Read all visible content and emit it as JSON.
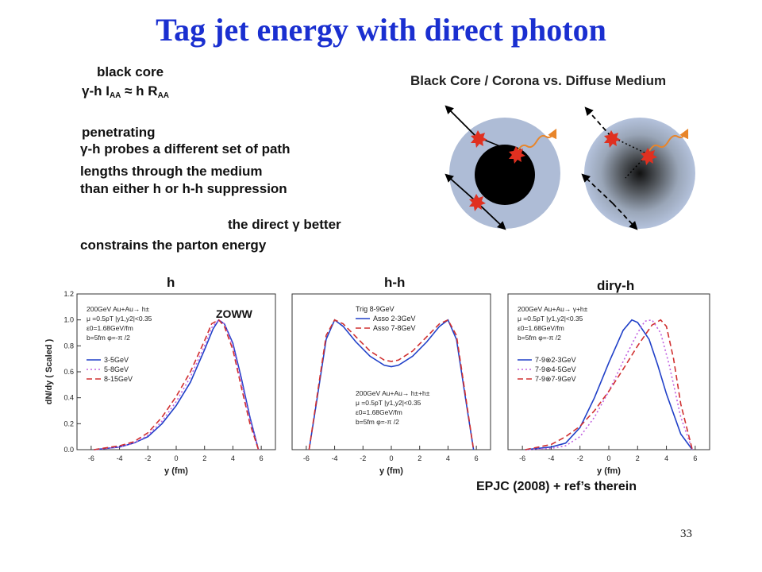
{
  "slide": {
    "title": "Tag jet energy with direct photon",
    "page_number": "33",
    "reference": "EPJC (2008) + ref’s therein",
    "diagram_title": "Black Core / Corona vs. Diffuse Medium",
    "text_blocks": {
      "black_core": "black core",
      "iaa_prefix": "γ-h I",
      "iaa_sub": "AA",
      "raa_prefix": " ≈ h R",
      "raa_sub": "AA",
      "penetrating": "penetrating",
      "pen_line1": "γ-h probes a different set of path",
      "pen_line2": "lengths through the medium",
      "pen_line3": "than either h or h-h suppression",
      "direct_line1": "the direct γ better",
      "direct_line2": "constrains the parton energy"
    },
    "colors": {
      "title": "#1a2fd0",
      "medium": "#aebcd6",
      "core": "#000000",
      "photon": "#e8852a",
      "star": "#e03020"
    }
  },
  "chart_data": [
    {
      "type": "line",
      "panel_label": "h",
      "badge": "ZOWW",
      "ylabel": "dN/dy ( Scaled )",
      "xlabel": "y (fm)",
      "xlim": [
        -7,
        7
      ],
      "ylim": [
        0,
        1.2
      ],
      "x_ticks": [
        "-6",
        "-4",
        "-2",
        "0",
        "2",
        "4",
        "6"
      ],
      "y_ticks": [
        "0.0",
        "0.2",
        "0.4",
        "0.6",
        "0.8",
        "1.0",
        "1.2"
      ],
      "annotation": [
        "200GeV  Au+Au→ h±",
        "μ =0.5pT  |y1,y2|<0.35",
        "ε0=1.68GeV/fm",
        "b=5fm  φ=-π /2"
      ],
      "series": [
        {
          "name": "3-5GeV",
          "color": "#2040c8",
          "dash": "solid",
          "x": [
            -5.8,
            -4,
            -3,
            -2,
            -1,
            0,
            1,
            2,
            2.6,
            3,
            3.4,
            4,
            4.6,
            5.2,
            5.8
          ],
          "y": [
            0,
            0.02,
            0.05,
            0.1,
            0.2,
            0.34,
            0.52,
            0.77,
            0.93,
            1.0,
            0.97,
            0.82,
            0.55,
            0.25,
            0
          ]
        },
        {
          "name": "5-8GeV",
          "color": "#c060e0",
          "dash": "dot",
          "x": [
            -5.8,
            -4,
            -3,
            -2,
            -1,
            0,
            1,
            2,
            2.5,
            3,
            3.4,
            4,
            4.6,
            5.2,
            5.8
          ],
          "y": [
            0,
            0.02,
            0.05,
            0.11,
            0.22,
            0.37,
            0.56,
            0.8,
            0.94,
            1.0,
            0.97,
            0.8,
            0.52,
            0.23,
            0
          ]
        },
        {
          "name": "8-15GeV",
          "color": "#d03030",
          "dash": "dash",
          "x": [
            -5.8,
            -4,
            -3,
            -2,
            -1,
            0,
            1,
            2,
            2.5,
            3,
            3.4,
            4,
            4.6,
            5.2,
            5.8
          ],
          "y": [
            0,
            0.03,
            0.06,
            0.13,
            0.25,
            0.41,
            0.6,
            0.84,
            0.97,
            1.0,
            0.95,
            0.77,
            0.48,
            0.2,
            0
          ]
        }
      ]
    },
    {
      "type": "line",
      "panel_label": "h-h",
      "xlabel": "y (fm)",
      "xlim": [
        -7,
        7
      ],
      "ylim": [
        0,
        1.2
      ],
      "x_ticks": [
        "-6",
        "-4",
        "-2",
        "0",
        "2",
        "4",
        "6"
      ],
      "legend_title": "Trig 8-9GeV",
      "annotation": [
        "200GeV  Au+Au→ h±+h±",
        "μ =0.5pT  |y1,y2|<0.35",
        "ε0=1.68GeV/fm",
        "b=5fm  φ=-π /2"
      ],
      "series": [
        {
          "name": "Asso 2-3GeV",
          "color": "#2040c8",
          "dash": "solid",
          "x": [
            -5.8,
            -5.3,
            -4.6,
            -4,
            -3.4,
            -2.5,
            -1.5,
            -0.5,
            0,
            0.5,
            1.5,
            2.5,
            3.4,
            4,
            4.6,
            5.3,
            5.8
          ],
          "y": [
            0,
            0.35,
            0.85,
            1.0,
            0.95,
            0.83,
            0.72,
            0.65,
            0.64,
            0.65,
            0.72,
            0.83,
            0.95,
            1.0,
            0.85,
            0.35,
            0
          ]
        },
        {
          "name": "Asso 7-8GeV",
          "color": "#d03030",
          "dash": "dash",
          "x": [
            -5.8,
            -5.3,
            -4.6,
            -4,
            -3.4,
            -2.5,
            -1.5,
            -0.5,
            0,
            0.5,
            1.5,
            2.5,
            3.4,
            4,
            4.6,
            5.3,
            5.8
          ],
          "y": [
            0,
            0.37,
            0.88,
            1.0,
            0.97,
            0.87,
            0.76,
            0.69,
            0.68,
            0.69,
            0.76,
            0.87,
            0.97,
            1.0,
            0.88,
            0.37,
            0
          ]
        }
      ]
    },
    {
      "type": "line",
      "panel_label": "dirγ-h",
      "xlabel": "y (fm)",
      "xlim": [
        -7,
        7
      ],
      "ylim": [
        0,
        1.2
      ],
      "x_ticks": [
        "-6",
        "-4",
        "-2",
        "0",
        "2",
        "4",
        "6"
      ],
      "annotation": [
        "200GeV  Au+Au→ γ+h±",
        "μ =0.5pT  |y1,y2|<0.35",
        "ε0=1.68GeV/fm",
        "b=5fm  φ=-π /2"
      ],
      "series": [
        {
          "name": "7-9⊗2-3GeV",
          "color": "#2040c8",
          "dash": "solid",
          "x": [
            -5.8,
            -4,
            -3,
            -2,
            -1,
            0,
            1,
            1.6,
            2,
            2.8,
            3.4,
            4,
            5,
            5.8
          ],
          "y": [
            0,
            0.02,
            0.05,
            0.17,
            0.4,
            0.67,
            0.92,
            1.0,
            0.98,
            0.85,
            0.65,
            0.43,
            0.12,
            0
          ]
        },
        {
          "name": "7-9⊗4-5GeV",
          "color": "#c060e0",
          "dash": "dot",
          "x": [
            -5.8,
            -4,
            -3,
            -2,
            -1,
            0,
            1,
            2,
            2.5,
            3,
            3.6,
            4.2,
            5,
            5.8
          ],
          "y": [
            0,
            0.01,
            0.03,
            0.1,
            0.25,
            0.45,
            0.68,
            0.9,
            0.99,
            1.0,
            0.9,
            0.65,
            0.25,
            0
          ]
        },
        {
          "name": "7-9⊗7-9GeV",
          "color": "#d03030",
          "dash": "dash",
          "x": [
            -5.8,
            -4,
            -3,
            -2,
            -1,
            0,
            1,
            2,
            3,
            3.6,
            4,
            4.5,
            5,
            5.8
          ],
          "y": [
            0,
            0.04,
            0.1,
            0.18,
            0.3,
            0.45,
            0.62,
            0.8,
            0.96,
            1.0,
            0.95,
            0.7,
            0.35,
            0
          ]
        }
      ]
    }
  ]
}
